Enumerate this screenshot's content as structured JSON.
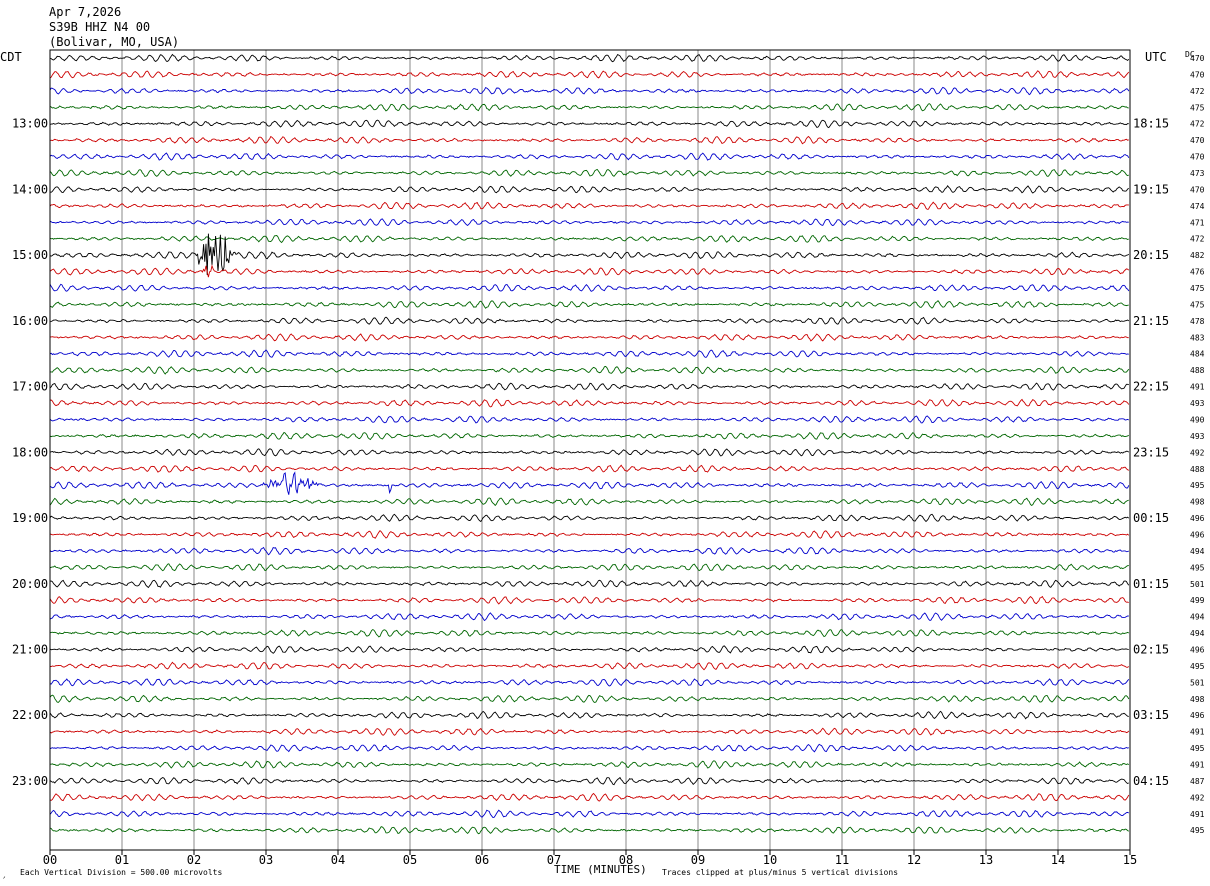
{
  "header": {
    "date": "Apr 7,2026",
    "station": "S39B HHZ N4 00",
    "location": "(Bolivar, MO, USA)"
  },
  "labels": {
    "left_tz": "CDT",
    "right_tz": "UTC",
    "dc": "DC",
    "xlabel": "TIME (MINUTES)",
    "scale_note": "Each Vertical Division =  500.00 microvolts",
    "clip_note": "Traces clipped at plus/minus 5 vertical divisions"
  },
  "colors": {
    "trace_cycle": [
      "#000000",
      "#cc0000",
      "#0000cc",
      "#006600"
    ],
    "grid": "#888888",
    "text": "#000000"
  },
  "chart_data": {
    "type": "line",
    "description_kind": "helicorder",
    "x_ticks": [
      "00",
      "01",
      "02",
      "03",
      "04",
      "05",
      "06",
      "07",
      "08",
      "09",
      "10",
      "11",
      "12",
      "13",
      "14",
      "15"
    ],
    "xlim": [
      0,
      15
    ],
    "trace_minutes": 15,
    "left_time_labels": [
      {
        "row": 4,
        "label": "13:00"
      },
      {
        "row": 8,
        "label": "14:00"
      },
      {
        "row": 12,
        "label": "15:00"
      },
      {
        "row": 16,
        "label": "16:00"
      },
      {
        "row": 20,
        "label": "17:00"
      },
      {
        "row": 24,
        "label": "18:00"
      },
      {
        "row": 28,
        "label": "19:00"
      },
      {
        "row": 32,
        "label": "20:00"
      },
      {
        "row": 36,
        "label": "21:00"
      },
      {
        "row": 40,
        "label": "22:00"
      },
      {
        "row": 44,
        "label": "23:00"
      }
    ],
    "right_time_labels": [
      {
        "row": 4,
        "label": "18:15"
      },
      {
        "row": 8,
        "label": "19:15"
      },
      {
        "row": 12,
        "label": "20:15"
      },
      {
        "row": 16,
        "label": "21:15"
      },
      {
        "row": 20,
        "label": "22:15"
      },
      {
        "row": 24,
        "label": "23:15"
      },
      {
        "row": 28,
        "label": "00:15"
      },
      {
        "row": 32,
        "label": "01:15"
      },
      {
        "row": 36,
        "label": "02:15"
      },
      {
        "row": 40,
        "label": "03:15"
      },
      {
        "row": 44,
        "label": "04:15"
      }
    ],
    "dc_offsets": [
      470,
      470,
      472,
      475,
      472,
      470,
      470,
      473,
      470,
      474,
      471,
      472,
      482,
      476,
      475,
      475,
      478,
      483,
      484,
      488,
      491,
      493,
      490,
      493,
      492,
      488,
      495,
      498,
      496,
      496,
      494,
      495,
      501,
      499,
      494,
      494,
      496,
      495,
      501,
      498,
      496,
      491,
      495,
      491,
      487,
      492,
      491,
      495
    ],
    "events": [
      {
        "row": 12,
        "start_min": 2.0,
        "end_min": 2.6,
        "amplitude": 0.85
      },
      {
        "row": 13,
        "start_min": 2.1,
        "end_min": 2.3,
        "amplitude": 0.3
      },
      {
        "row": 26,
        "start_min": 2.95,
        "end_min": 3.75,
        "amplitude": 0.45
      },
      {
        "row": 26,
        "start_min": 4.7,
        "end_min": 4.75,
        "amplitude": 0.4
      }
    ]
  }
}
